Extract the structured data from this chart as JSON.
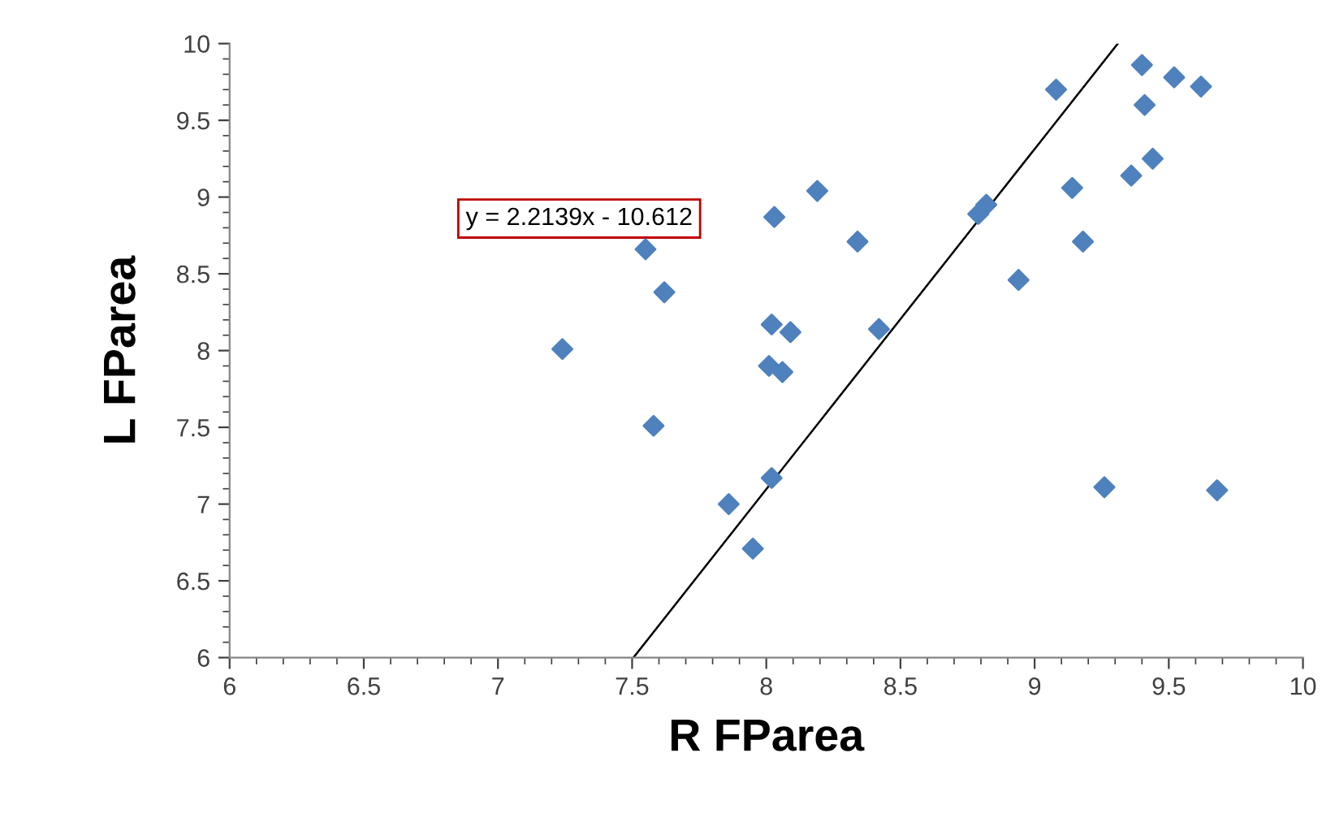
{
  "chart_data": {
    "type": "scatter",
    "xlabel": "R FParea",
    "ylabel": "L FParea",
    "xlim": [
      6,
      10
    ],
    "xticks": [
      6,
      6.5,
      7,
      7.5,
      8,
      8.5,
      9,
      9.5,
      10
    ],
    "ylim": [
      6,
      10
    ],
    "yticks": [
      6,
      6.5,
      7,
      7.5,
      8,
      8.5,
      9,
      9.5,
      10
    ],
    "grid": false,
    "legend": false,
    "annotations": [
      "y = 2.2139x - 10.612"
    ],
    "series": [
      {
        "color": "#4f81bd",
        "marker": "diamond",
        "x": [
          7.24,
          7.55,
          7.58,
          7.62,
          7.86,
          7.95,
          8.01,
          8.02,
          8.02,
          8.03,
          8.06,
          8.09,
          8.19,
          8.34,
          8.42,
          8.79,
          8.82,
          8.94,
          9.08,
          9.14,
          9.18,
          9.26,
          9.36,
          9.4,
          9.41,
          9.44,
          9.52,
          9.62,
          9.68
        ],
        "values": [
          8.01,
          8.66,
          7.51,
          8.38,
          7.0,
          6.71,
          7.9,
          8.17,
          7.17,
          8.87,
          7.86,
          8.12,
          9.04,
          8.71,
          8.14,
          8.89,
          8.95,
          8.46,
          9.7,
          9.06,
          8.71,
          7.11,
          9.14,
          9.86,
          9.6,
          9.25,
          9.78,
          9.72,
          7.09
        ]
      },
      {
        "type": "line",
        "color": "#000000",
        "x": [
          7.505,
          9.31
        ],
        "values": [
          6.0,
          10.0
        ]
      }
    ]
  }
}
